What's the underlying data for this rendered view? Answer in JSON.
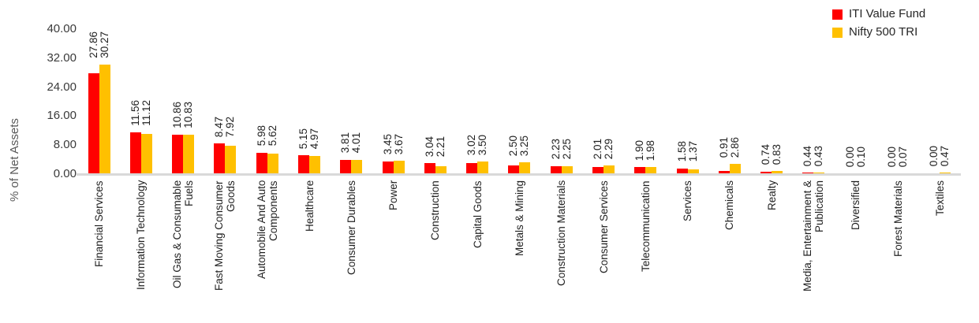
{
  "chart_data": {
    "type": "bar",
    "title": "",
    "xlabel": "",
    "ylabel": "% of Net Assets",
    "ylim": [
      0,
      40
    ],
    "ytick_step": 8,
    "yticks": [
      "40.00",
      "32.00",
      "24.00",
      "16.00",
      "8.00",
      "0.00"
    ],
    "grid": false,
    "legend_position": "top-right",
    "value_label_format": "2-decimals",
    "categories": [
      "Financial Services",
      "Information Technology",
      "Oil Gas & Consumable Fuels",
      "Fast Moving Consumer Goods",
      "Automobile And Auto Components",
      "Healthcare",
      "Consumer Durables",
      "Power",
      "Construction",
      "Capital Goods",
      "Metals & Mining",
      "Construction Materials",
      "Consumer Services",
      "Telecommunication",
      "Services",
      "Chemicals",
      "Realty",
      "Media, Entertainment & Publication",
      "Diversified",
      "Forest Materials",
      "Textiles"
    ],
    "category_lines": [
      [
        "Financial Services"
      ],
      [
        "Information Technology"
      ],
      [
        "Oil Gas & Consumable",
        "Fuels"
      ],
      [
        "Fast Moving Consumer",
        "Goods"
      ],
      [
        "Automobile And Auto",
        "Components"
      ],
      [
        "Healthcare"
      ],
      [
        "Consumer Durables"
      ],
      [
        "Power"
      ],
      [
        "Construction"
      ],
      [
        "Capital Goods"
      ],
      [
        "Metals & Mining"
      ],
      [
        "Construction Materials"
      ],
      [
        "Consumer Services"
      ],
      [
        "Telecommunication"
      ],
      [
        "Services"
      ],
      [
        "Chemicals"
      ],
      [
        "Realty"
      ],
      [
        "Media, Entertainment &",
        "Publication"
      ],
      [
        "Diversified"
      ],
      [
        "Forest Materials"
      ],
      [
        "Textiles"
      ]
    ],
    "series": [
      {
        "name": "ITI Value Fund",
        "color": "#FF0000",
        "values": [
          27.86,
          11.56,
          10.86,
          8.47,
          5.98,
          5.15,
          3.81,
          3.45,
          3.04,
          3.02,
          2.5,
          2.23,
          2.01,
          1.9,
          1.58,
          0.91,
          0.74,
          0.44,
          0.0,
          0.0,
          0.0
        ]
      },
      {
        "name": "Nifty 500 TRI",
        "color": "#FFC000",
        "values": [
          30.27,
          11.12,
          10.83,
          7.92,
          5.62,
          4.97,
          4.01,
          3.67,
          2.21,
          3.5,
          3.25,
          2.25,
          2.29,
          1.98,
          1.37,
          2.86,
          0.83,
          0.43,
          0.1,
          0.07,
          0.47
        ]
      }
    ],
    "colors": {
      "axis_line": "#d9d9d9",
      "tick_text": "#3a3a3a",
      "label_text": "#1f1f1f",
      "y_title_text": "#595959"
    }
  }
}
